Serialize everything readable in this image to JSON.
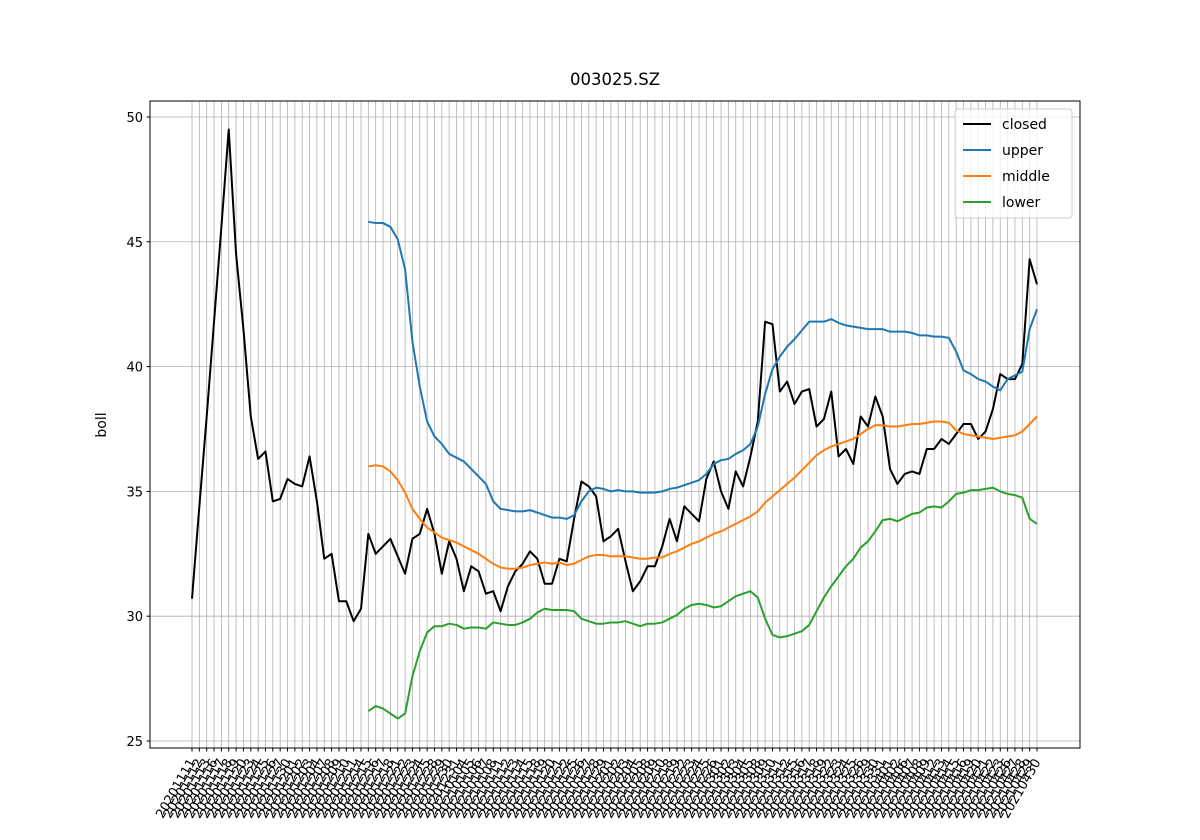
{
  "chart_data": {
    "type": "line",
    "title": "003025.SZ",
    "y_label": "boll",
    "categories": [
      "20201111",
      "20201112",
      "20201113",
      "20201116",
      "20201117",
      "20201118",
      "20201119",
      "20201120",
      "20201123",
      "20201124",
      "20201125",
      "20201126",
      "20201127",
      "20201130",
      "20201201",
      "20201202",
      "20201203",
      "20201204",
      "20201207",
      "20201208",
      "20201209",
      "20201210",
      "20201211",
      "20201214",
      "20201215",
      "20201216",
      "20201217",
      "20201218",
      "20201221",
      "20201222",
      "20201223",
      "20201224",
      "20201225",
      "20201228",
      "20201229",
      "20201230",
      "20201231",
      "20210104",
      "20210105",
      "20210106",
      "20210107",
      "20210108",
      "20210111",
      "20210112",
      "20210113",
      "20210114",
      "20210115",
      "20210118",
      "20210119",
      "20210120",
      "20210121",
      "20210122",
      "20210125",
      "20210126",
      "20210127",
      "20210128",
      "20210129",
      "20210201",
      "20210202",
      "20210203",
      "20210204",
      "20210205",
      "20210208",
      "20210209",
      "20210210",
      "20210218",
      "20210219",
      "20210222",
      "20210223",
      "20210224",
      "20210225",
      "20210226",
      "20210301",
      "20210302",
      "20210303",
      "20210304",
      "20210305",
      "20210308",
      "20210309",
      "20210310",
      "20210311",
      "20210312",
      "20210315",
      "20210316",
      "20210317",
      "20210318",
      "20210319",
      "20210322",
      "20210323",
      "20210324",
      "20210325",
      "20210326",
      "20210329",
      "20210330",
      "20210331",
      "20210401",
      "20210402",
      "20210406",
      "20210407",
      "20210408",
      "20210409",
      "20210412",
      "20210413",
      "20210414",
      "20210415",
      "20210416",
      "20210419",
      "20210420",
      "20210421",
      "20210422",
      "20210423",
      "20210426",
      "20210427",
      "20210428",
      "20210429",
      "20210430"
    ],
    "series": [
      {
        "name": "closed",
        "color": "#000000",
        "values": [
          30.7,
          34.4,
          38.0,
          41.8,
          45.6,
          49.5,
          44.5,
          41.5,
          38.0,
          36.3,
          36.6,
          34.6,
          34.7,
          35.5,
          35.3,
          35.2,
          36.4,
          34.6,
          32.3,
          32.5,
          30.6,
          30.6,
          29.8,
          30.3,
          33.3,
          32.5,
          32.8,
          33.1,
          32.4,
          31.7,
          33.1,
          33.3,
          34.3,
          33.3,
          31.7,
          33.0,
          32.3,
          31.0,
          32.0,
          31.8,
          30.9,
          31.0,
          30.2,
          31.2,
          31.8,
          32.1,
          32.6,
          32.3,
          31.3,
          31.3,
          32.3,
          32.2,
          33.9,
          35.4,
          35.2,
          34.8,
          33.0,
          33.2,
          33.5,
          32.2,
          31.0,
          31.4,
          32.0,
          32.0,
          32.8,
          33.9,
          33.0,
          34.4,
          34.1,
          33.8,
          35.5,
          36.2,
          35.0,
          34.3,
          35.8,
          35.2,
          36.4,
          37.8,
          41.8,
          41.7,
          39.0,
          39.4,
          38.5,
          39.0,
          39.1,
          37.6,
          37.9,
          39.0,
          36.4,
          36.7,
          36.1,
          38.0,
          37.6,
          38.8,
          38.0,
          35.9,
          35.3,
          35.7,
          35.8,
          35.7,
          36.7,
          36.7,
          37.1,
          36.9,
          37.3,
          37.7,
          37.7,
          37.1,
          37.4,
          38.3,
          39.7,
          39.5,
          39.5,
          40.1,
          44.3,
          43.3
        ]
      },
      {
        "name": "upper",
        "color": "#1f77b4",
        "values": [
          null,
          null,
          null,
          null,
          null,
          null,
          null,
          null,
          null,
          null,
          null,
          null,
          null,
          null,
          null,
          null,
          null,
          null,
          null,
          null,
          null,
          null,
          null,
          null,
          45.8,
          45.75,
          45.75,
          45.6,
          45.1,
          43.9,
          41.0,
          39.2,
          37.8,
          37.2,
          36.9,
          36.5,
          36.35,
          36.2,
          35.9,
          35.6,
          35.3,
          34.6,
          34.3,
          34.25,
          34.2,
          34.2,
          34.25,
          34.15,
          34.05,
          33.95,
          33.95,
          33.9,
          34.05,
          34.6,
          35.0,
          35.15,
          35.1,
          35.0,
          35.05,
          35.0,
          35.0,
          34.95,
          34.95,
          34.95,
          35.0,
          35.1,
          35.15,
          35.25,
          35.35,
          35.45,
          35.7,
          36.1,
          36.25,
          36.3,
          36.5,
          36.65,
          36.9,
          37.6,
          38.9,
          39.9,
          40.4,
          40.8,
          41.1,
          41.45,
          41.8,
          41.8,
          41.8,
          41.9,
          41.75,
          41.65,
          41.6,
          41.55,
          41.5,
          41.5,
          41.5,
          41.4,
          41.4,
          41.4,
          41.35,
          41.25,
          41.25,
          41.2,
          41.2,
          41.15,
          40.6,
          39.85,
          39.7,
          39.5,
          39.4,
          39.2,
          39.05,
          39.5,
          39.65,
          39.8,
          41.5,
          42.3
        ]
      },
      {
        "name": "middle",
        "color": "#ff7f0e",
        "values": [
          null,
          null,
          null,
          null,
          null,
          null,
          null,
          null,
          null,
          null,
          null,
          null,
          null,
          null,
          null,
          null,
          null,
          null,
          null,
          null,
          null,
          null,
          null,
          null,
          36.0,
          36.05,
          36.0,
          35.8,
          35.45,
          34.95,
          34.3,
          33.9,
          33.55,
          33.35,
          33.15,
          33.05,
          32.95,
          32.8,
          32.65,
          32.5,
          32.3,
          32.1,
          31.95,
          31.9,
          31.9,
          31.95,
          32.05,
          32.1,
          32.15,
          32.1,
          32.15,
          32.05,
          32.1,
          32.25,
          32.4,
          32.45,
          32.45,
          32.4,
          32.4,
          32.4,
          32.35,
          32.3,
          32.3,
          32.35,
          32.35,
          32.5,
          32.6,
          32.75,
          32.9,
          33.0,
          33.15,
          33.3,
          33.4,
          33.55,
          33.7,
          33.85,
          34.0,
          34.2,
          34.55,
          34.8,
          35.05,
          35.3,
          35.55,
          35.85,
          36.15,
          36.45,
          36.65,
          36.8,
          36.9,
          37.0,
          37.1,
          37.3,
          37.5,
          37.65,
          37.65,
          37.6,
          37.6,
          37.65,
          37.7,
          37.7,
          37.75,
          37.8,
          37.8,
          37.75,
          37.45,
          37.3,
          37.25,
          37.2,
          37.15,
          37.1,
          37.15,
          37.2,
          37.25,
          37.4,
          37.7,
          38.0
        ]
      },
      {
        "name": "lower",
        "color": "#2ca02c",
        "values": [
          null,
          null,
          null,
          null,
          null,
          null,
          null,
          null,
          null,
          null,
          null,
          null,
          null,
          null,
          null,
          null,
          null,
          null,
          null,
          null,
          null,
          null,
          null,
          null,
          26.2,
          26.4,
          26.3,
          26.1,
          25.9,
          26.1,
          27.6,
          28.6,
          29.35,
          29.6,
          29.6,
          29.7,
          29.65,
          29.5,
          29.55,
          29.55,
          29.5,
          29.75,
          29.7,
          29.65,
          29.65,
          29.75,
          29.9,
          30.15,
          30.3,
          30.25,
          30.25,
          30.25,
          30.2,
          29.9,
          29.8,
          29.7,
          29.7,
          29.75,
          29.75,
          29.8,
          29.7,
          29.6,
          29.7,
          29.7,
          29.75,
          29.9,
          30.05,
          30.3,
          30.45,
          30.5,
          30.45,
          30.35,
          30.4,
          30.6,
          30.8,
          30.9,
          31.0,
          30.75,
          29.9,
          29.25,
          29.15,
          29.2,
          29.3,
          29.4,
          29.65,
          30.2,
          30.75,
          31.2,
          31.6,
          32.0,
          32.3,
          32.75,
          33.0,
          33.4,
          33.85,
          33.9,
          33.8,
          33.95,
          34.1,
          34.15,
          34.35,
          34.4,
          34.35,
          34.6,
          34.9,
          34.95,
          35.05,
          35.05,
          35.1,
          35.15,
          35.0,
          34.9,
          34.85,
          34.75,
          33.9,
          33.7
        ]
      }
    ],
    "ylim": [
      24.72,
      50.64
    ],
    "yticks": [
      25,
      30,
      35,
      40,
      45,
      50
    ],
    "grid": true,
    "legend": "upper right"
  }
}
